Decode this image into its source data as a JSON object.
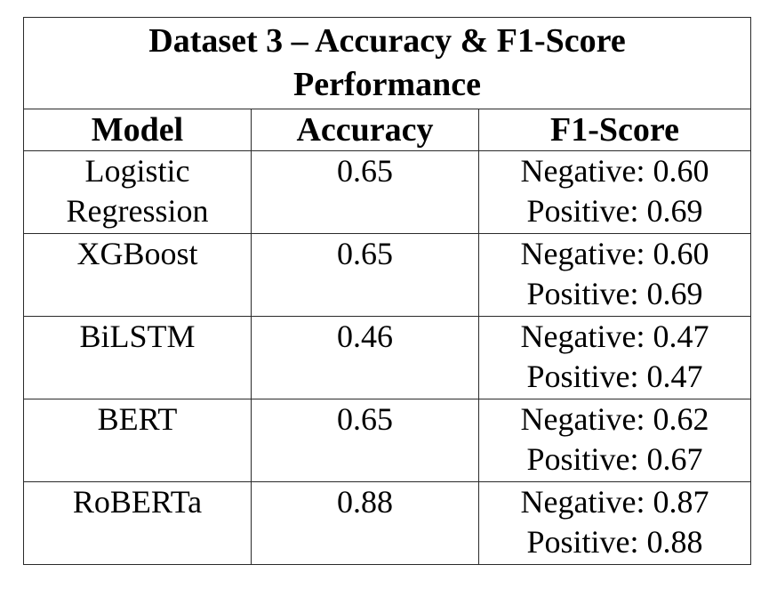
{
  "table": {
    "title": "Dataset 3 – Accuracy & F1-Score Performance",
    "title_lines": [
      "Dataset 3 – Accuracy & F1-Score",
      "Performance"
    ],
    "headers": {
      "model": "Model",
      "accuracy": "Accuracy",
      "f1": "F1-Score"
    },
    "rows": [
      {
        "model_lines": [
          "Logistic",
          "Regression"
        ],
        "accuracy": "0.65",
        "f1_negative": "Negative: 0.60",
        "f1_positive": "Positive: 0.69"
      },
      {
        "model_lines": [
          "XGBoost",
          ""
        ],
        "accuracy": "0.65",
        "f1_negative": "Negative: 0.60",
        "f1_positive": "Positive: 0.69"
      },
      {
        "model_lines": [
          "BiLSTM",
          ""
        ],
        "accuracy": "0.46",
        "f1_negative": "Negative: 0.47",
        "f1_positive": "Positive: 0.47"
      },
      {
        "model_lines": [
          "BERT",
          ""
        ],
        "accuracy": "0.65",
        "f1_negative": "Negative: 0.62",
        "f1_positive": "Positive: 0.67"
      },
      {
        "model_lines": [
          "RoBERTa",
          ""
        ],
        "accuracy": "0.88",
        "f1_negative": "Negative: 0.87",
        "f1_positive": "Positive: 0.88"
      }
    ]
  }
}
